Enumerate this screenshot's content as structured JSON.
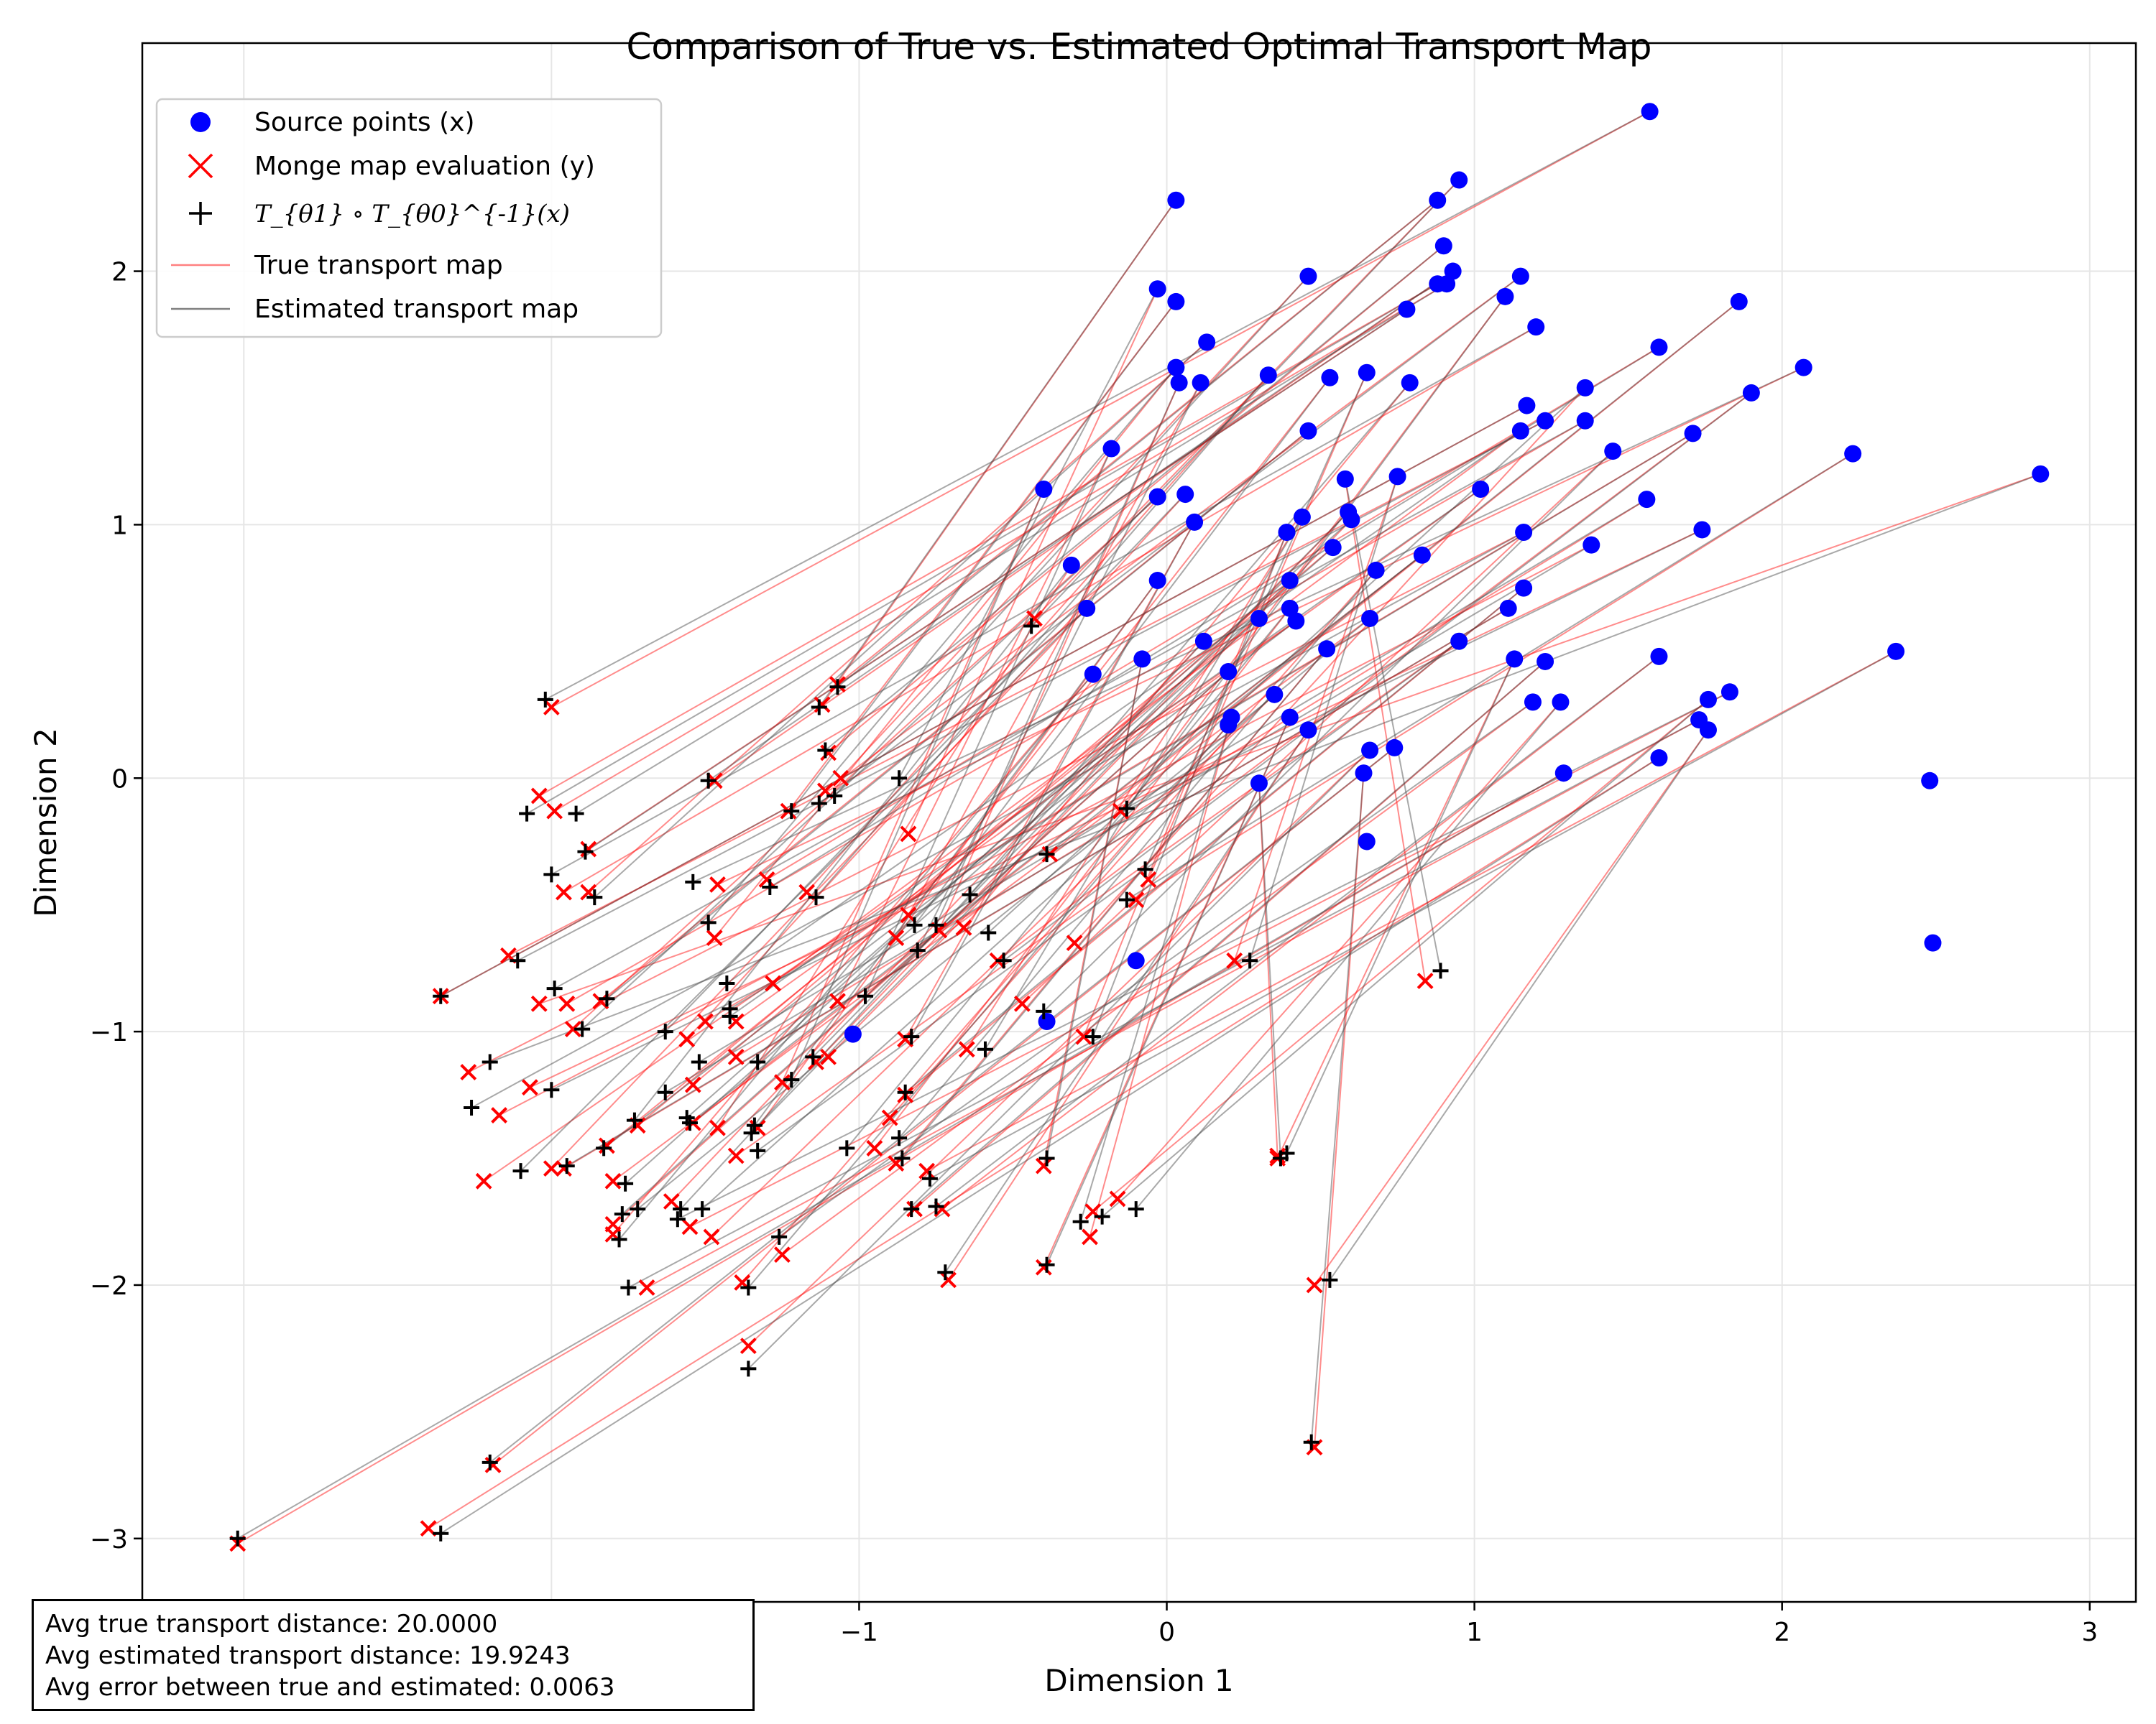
{
  "chart_data": {
    "type": "scatter",
    "title": "Comparison of True vs. Estimated Optimal Transport Map",
    "xlabel": "Dimension 1",
    "ylabel": "Dimension 2",
    "xlim": [
      -3.33,
      3.15
    ],
    "ylim": [
      -3.25,
      2.9
    ],
    "xticks": [
      -3,
      -2,
      -1,
      0,
      1,
      2,
      3
    ],
    "yticks": [
      -3,
      -2,
      -1,
      0,
      1,
      2
    ],
    "grid": true,
    "legend_position": "top-left",
    "legend": [
      {
        "name": "Source points (x)",
        "marker": "circle",
        "color": "#0000ff"
      },
      {
        "name": "Monge map evaluation (y)",
        "marker": "x",
        "color": "#ff0000"
      },
      {
        "name": "T_{θ1} ∘ T_{θ0}^{-1}(x)",
        "marker": "plus",
        "color": "#000000"
      },
      {
        "name": "True transport map",
        "marker": "line",
        "color": "#ff8080"
      },
      {
        "name": "Estimated transport map",
        "marker": "line",
        "color": "#808080"
      }
    ],
    "series": [
      {
        "name": "Source points (x)",
        "points": [
          [
            1.57,
            2.63
          ],
          [
            0.95,
            2.36
          ],
          [
            0.88,
            2.28
          ],
          [
            0.03,
            2.28
          ],
          [
            0.9,
            2.1
          ],
          [
            0.93,
            2.0
          ],
          [
            0.46,
            1.98
          ],
          [
            1.15,
            1.98
          ],
          [
            0.88,
            1.95
          ],
          [
            0.91,
            1.95
          ],
          [
            -0.03,
            1.93
          ],
          [
            0.03,
            1.88
          ],
          [
            1.1,
            1.9
          ],
          [
            1.86,
            1.88
          ],
          [
            0.78,
            1.85
          ],
          [
            1.2,
            1.78
          ],
          [
            0.13,
            1.72
          ],
          [
            1.6,
            1.7
          ],
          [
            0.03,
            1.62
          ],
          [
            2.07,
            1.62
          ],
          [
            0.65,
            1.6
          ],
          [
            0.33,
            1.59
          ],
          [
            0.53,
            1.58
          ],
          [
            0.04,
            1.56
          ],
          [
            0.11,
            1.56
          ],
          [
            0.79,
            1.56
          ],
          [
            1.36,
            1.54
          ],
          [
            1.9,
            1.52
          ],
          [
            1.17,
            1.47
          ],
          [
            1.23,
            1.41
          ],
          [
            1.36,
            1.41
          ],
          [
            0.46,
            1.37
          ],
          [
            1.15,
            1.37
          ],
          [
            1.71,
            1.36
          ],
          [
            -0.18,
            1.3
          ],
          [
            1.45,
            1.29
          ],
          [
            2.23,
            1.28
          ],
          [
            0.75,
            1.19
          ],
          [
            0.58,
            1.18
          ],
          [
            2.84,
            1.2
          ],
          [
            -0.03,
            1.11
          ],
          [
            0.06,
            1.12
          ],
          [
            1.02,
            1.14
          ],
          [
            1.56,
            1.1
          ],
          [
            -0.4,
            1.14
          ],
          [
            0.59,
            1.05
          ],
          [
            0.6,
            1.02
          ],
          [
            0.09,
            1.01
          ],
          [
            0.44,
            1.03
          ],
          [
            0.39,
            0.97
          ],
          [
            1.16,
            0.97
          ],
          [
            1.74,
            0.98
          ],
          [
            1.38,
            0.92
          ],
          [
            0.54,
            0.91
          ],
          [
            0.83,
            0.88
          ],
          [
            -0.31,
            0.84
          ],
          [
            0.4,
            0.78
          ],
          [
            -0.03,
            0.78
          ],
          [
            0.68,
            0.82
          ],
          [
            1.16,
            0.75
          ],
          [
            0.4,
            0.67
          ],
          [
            -0.26,
            0.67
          ],
          [
            1.11,
            0.67
          ],
          [
            0.42,
            0.62
          ],
          [
            0.3,
            0.63
          ],
          [
            0.66,
            0.63
          ],
          [
            0.12,
            0.54
          ],
          [
            0.95,
            0.54
          ],
          [
            0.52,
            0.51
          ],
          [
            2.37,
            0.5
          ],
          [
            -0.08,
            0.47
          ],
          [
            1.13,
            0.47
          ],
          [
            1.23,
            0.46
          ],
          [
            1.6,
            0.48
          ],
          [
            0.2,
            0.42
          ],
          [
            -0.24,
            0.41
          ],
          [
            1.83,
            0.34
          ],
          [
            0.35,
            0.33
          ],
          [
            1.19,
            0.3
          ],
          [
            1.28,
            0.3
          ],
          [
            1.76,
            0.31
          ],
          [
            0.21,
            0.24
          ],
          [
            0.4,
            0.24
          ],
          [
            1.73,
            0.23
          ],
          [
            0.2,
            0.21
          ],
          [
            0.46,
            0.19
          ],
          [
            1.76,
            0.19
          ],
          [
            0.66,
            0.11
          ],
          [
            0.74,
            0.12
          ],
          [
            1.6,
            0.08
          ],
          [
            1.29,
            0.02
          ],
          [
            0.64,
            0.02
          ],
          [
            0.3,
            -0.02
          ],
          [
            2.48,
            -0.01
          ],
          [
            0.65,
            -0.25
          ],
          [
            2.49,
            -0.65
          ],
          [
            -0.1,
            -0.72
          ],
          [
            -0.39,
            -0.96
          ],
          [
            -1.02,
            -1.01
          ]
        ]
      },
      {
        "name": "Monge map evaluation (y)",
        "points": [
          [
            -2.0,
            0.28
          ],
          [
            -0.43,
            0.63
          ],
          [
            -1.07,
            0.37
          ],
          [
            -1.12,
            0.29
          ],
          [
            -1.1,
            0.1
          ],
          [
            -1.47,
            -0.01
          ],
          [
            -1.06,
            0.0
          ],
          [
            -1.11,
            -0.05
          ],
          [
            -2.04,
            -0.07
          ],
          [
            -1.99,
            -0.13
          ],
          [
            -0.84,
            -0.22
          ],
          [
            -1.23,
            -0.13
          ],
          [
            -0.15,
            -0.13
          ],
          [
            -0.38,
            -0.3
          ],
          [
            -1.88,
            -0.28
          ],
          [
            -1.96,
            -0.45
          ],
          [
            -1.88,
            -0.45
          ],
          [
            -1.3,
            -0.4
          ],
          [
            -1.47,
            -0.63
          ],
          [
            -1.46,
            -0.42
          ],
          [
            -0.06,
            -0.4
          ],
          [
            -1.17,
            -0.45
          ],
          [
            -0.84,
            -0.54
          ],
          [
            -0.74,
            -0.6
          ],
          [
            -0.88,
            -0.63
          ],
          [
            -0.66,
            -0.59
          ],
          [
            -0.3,
            -0.65
          ],
          [
            -0.55,
            -0.72
          ],
          [
            -2.36,
            -0.86
          ],
          [
            -2.14,
            -0.7
          ],
          [
            -1.95,
            -0.89
          ],
          [
            -1.84,
            -0.88
          ],
          [
            -1.28,
            -0.81
          ],
          [
            -1.5,
            -0.96
          ],
          [
            -1.07,
            -0.88
          ],
          [
            -0.47,
            -0.89
          ],
          [
            -0.1,
            -0.48
          ],
          [
            0.22,
            -0.72
          ],
          [
            0.84,
            -0.8
          ],
          [
            -2.04,
            -0.89
          ],
          [
            -1.93,
            -0.99
          ],
          [
            -1.56,
            -1.03
          ],
          [
            -1.4,
            -0.96
          ],
          [
            -1.4,
            -1.1
          ],
          [
            -1.25,
            -1.2
          ],
          [
            -1.14,
            -1.12
          ],
          [
            -1.1,
            -1.1
          ],
          [
            -0.85,
            -1.03
          ],
          [
            -0.65,
            -1.07
          ],
          [
            -0.27,
            -1.02
          ],
          [
            -2.27,
            -1.16
          ],
          [
            -2.07,
            -1.22
          ],
          [
            -2.17,
            -1.33
          ],
          [
            -1.54,
            -1.21
          ],
          [
            -1.54,
            -1.36
          ],
          [
            -1.46,
            -1.38
          ],
          [
            -1.72,
            -1.37
          ],
          [
            -1.33,
            -1.38
          ],
          [
            -0.9,
            -1.34
          ],
          [
            -0.85,
            -1.25
          ],
          [
            -0.95,
            -1.46
          ],
          [
            -2.0,
            -1.54
          ],
          [
            -1.96,
            -1.54
          ],
          [
            -2.22,
            -1.59
          ],
          [
            -1.82,
            -1.45
          ],
          [
            -1.8,
            -1.59
          ],
          [
            -1.61,
            -1.67
          ],
          [
            -1.4,
            -1.49
          ],
          [
            -0.88,
            -1.52
          ],
          [
            -0.78,
            -1.55
          ],
          [
            -0.4,
            -1.53
          ],
          [
            0.36,
            -1.5
          ],
          [
            -0.82,
            -1.7
          ],
          [
            -0.73,
            -1.7
          ],
          [
            -1.8,
            -1.76
          ],
          [
            -1.8,
            -1.8
          ],
          [
            -1.55,
            -1.77
          ],
          [
            -1.48,
            -1.81
          ],
          [
            -1.25,
            -1.88
          ],
          [
            -0.16,
            -1.66
          ],
          [
            -0.24,
            -1.71
          ],
          [
            -0.25,
            -1.81
          ],
          [
            -0.4,
            -1.93
          ],
          [
            -1.69,
            -2.01
          ],
          [
            -1.38,
            -1.99
          ],
          [
            -0.71,
            -1.98
          ],
          [
            0.48,
            -2.0
          ],
          [
            -1.36,
            -2.24
          ],
          [
            -2.19,
            -2.71
          ],
          [
            -2.4,
            -2.96
          ],
          [
            -3.02,
            -3.02
          ],
          [
            0.48,
            -2.64
          ],
          [
            0.36,
            -1.49
          ]
        ]
      },
      {
        "name": "T_{θ1} ∘ T_{θ0}^{-1}(x)",
        "points": [
          [
            -2.02,
            0.31
          ],
          [
            -0.44,
            0.6
          ],
          [
            -1.07,
            0.36
          ],
          [
            -1.13,
            0.28
          ],
          [
            -1.11,
            0.11
          ],
          [
            -1.49,
            -0.01
          ],
          [
            -1.08,
            -0.07
          ],
          [
            -1.13,
            -0.1
          ],
          [
            -2.08,
            -0.14
          ],
          [
            -1.92,
            -0.14
          ],
          [
            -0.87,
            0.0
          ],
          [
            -1.22,
            -0.13
          ],
          [
            -0.13,
            -0.12
          ],
          [
            -0.39,
            -0.3
          ],
          [
            -1.89,
            -0.29
          ],
          [
            -2.0,
            -0.38
          ],
          [
            -1.86,
            -0.47
          ],
          [
            -1.29,
            -0.43
          ],
          [
            -1.49,
            -0.57
          ],
          [
            -1.54,
            -0.41
          ],
          [
            -0.07,
            -0.36
          ],
          [
            -1.14,
            -0.47
          ],
          [
            -0.82,
            -0.58
          ],
          [
            -0.75,
            -0.58
          ],
          [
            -0.81,
            -0.68
          ],
          [
            -0.64,
            -0.46
          ],
          [
            -0.58,
            -0.61
          ],
          [
            -0.53,
            -0.72
          ],
          [
            -2.36,
            -0.86
          ],
          [
            -2.11,
            -0.72
          ],
          [
            -1.99,
            -0.83
          ],
          [
            -1.82,
            -0.87
          ],
          [
            -1.43,
            -0.81
          ],
          [
            -1.42,
            -0.91
          ],
          [
            -0.98,
            -0.86
          ],
          [
            -0.4,
            -0.92
          ],
          [
            -0.13,
            -0.48
          ],
          [
            0.27,
            -0.72
          ],
          [
            0.89,
            -0.76
          ],
          [
            -2.2,
            -1.12
          ],
          [
            -1.9,
            -0.99
          ],
          [
            -1.63,
            -1.0
          ],
          [
            -1.42,
            -0.94
          ],
          [
            -1.52,
            -1.12
          ],
          [
            -1.22,
            -1.19
          ],
          [
            -1.15,
            -1.1
          ],
          [
            -1.33,
            -1.12
          ],
          [
            -0.83,
            -1.02
          ],
          [
            -0.59,
            -1.07
          ],
          [
            -0.24,
            -1.02
          ],
          [
            -2.26,
            -1.3
          ],
          [
            -2.0,
            -1.23
          ],
          [
            -1.63,
            -1.24
          ],
          [
            -1.56,
            -1.34
          ],
          [
            -1.55,
            -1.36
          ],
          [
            -1.73,
            -1.35
          ],
          [
            -1.35,
            -1.4
          ],
          [
            -1.34,
            -1.37
          ],
          [
            -0.87,
            -1.42
          ],
          [
            -0.85,
            -1.24
          ],
          [
            -1.04,
            -1.46
          ],
          [
            -2.1,
            -1.55
          ],
          [
            -1.95,
            -1.53
          ],
          [
            -1.83,
            -1.46
          ],
          [
            -1.76,
            -1.6
          ],
          [
            -1.72,
            -1.7
          ],
          [
            -1.58,
            -1.7
          ],
          [
            -1.33,
            -1.47
          ],
          [
            -0.86,
            -1.5
          ],
          [
            -0.77,
            -1.58
          ],
          [
            -0.39,
            -1.5
          ],
          [
            0.39,
            -1.48
          ],
          [
            -0.83,
            -1.7
          ],
          [
            -0.75,
            -1.69
          ],
          [
            -1.77,
            -1.72
          ],
          [
            -1.78,
            -1.82
          ],
          [
            -1.59,
            -1.74
          ],
          [
            -1.51,
            -1.7
          ],
          [
            -1.26,
            -1.81
          ],
          [
            -0.1,
            -1.7
          ],
          [
            -0.21,
            -1.73
          ],
          [
            -0.28,
            -1.75
          ],
          [
            -0.39,
            -1.92
          ],
          [
            -1.75,
            -2.01
          ],
          [
            -1.36,
            -2.01
          ],
          [
            -0.72,
            -1.95
          ],
          [
            0.53,
            -1.98
          ],
          [
            -1.36,
            -2.33
          ],
          [
            -2.2,
            -2.7
          ],
          [
            -2.36,
            -2.98
          ],
          [
            -3.02,
            -3.0
          ],
          [
            0.47,
            -2.62
          ],
          [
            0.37,
            -1.5
          ]
        ]
      }
    ],
    "annotations": [
      "Avg true transport distance: 20.0000",
      "Avg estimated transport distance: 19.9243",
      "Avg error between true and estimated: 0.0063"
    ]
  }
}
